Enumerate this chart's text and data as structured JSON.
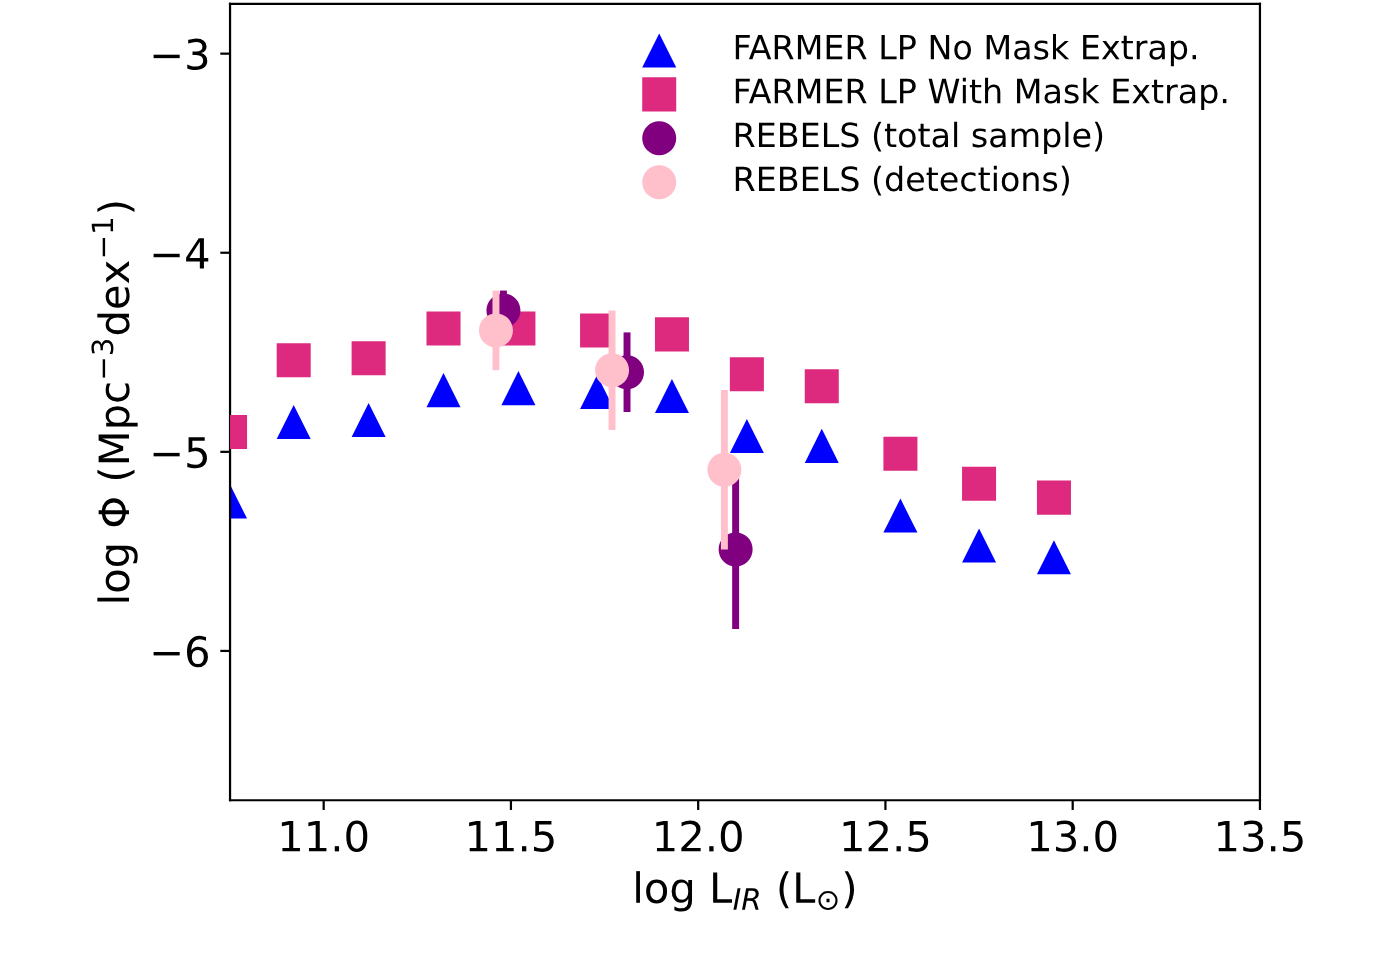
{
  "chart_data": {
    "type": "scatter",
    "xlabel": "log L$_{IR}$ (L$_{⊙}$)",
    "ylabel": "log Φ (Mpc$^{−3}$dex$^{−1}$)",
    "xlim": [
      10.75,
      13.5
    ],
    "ylim": [
      -6.75,
      -2.75
    ],
    "xticks": [
      {
        "value": 11.0,
        "label": "11.0"
      },
      {
        "value": 11.5,
        "label": "11.5"
      },
      {
        "value": 12.0,
        "label": "12.0"
      },
      {
        "value": 12.5,
        "label": "12.5"
      },
      {
        "value": 13.0,
        "label": "13.0"
      },
      {
        "value": 13.5,
        "label": "13.5"
      }
    ],
    "yticks": [
      -6,
      -5,
      -4,
      -3
    ],
    "grid": false,
    "legend": "top right",
    "series": [
      {
        "name": "FARMER LP No Mask Extrap.",
        "color": "#0000ff",
        "marker": "triangle",
        "x": [
          10.75,
          10.92,
          11.12,
          11.32,
          11.52,
          11.73,
          11.93,
          12.13,
          12.33,
          12.54,
          12.75,
          12.95
        ],
        "values": [
          -5.25,
          -4.85,
          -4.84,
          -4.69,
          -4.68,
          -4.7,
          -4.72,
          -4.92,
          -4.97,
          -5.32,
          -5.47,
          -5.53
        ]
      },
      {
        "name": "FARMER LP With Mask Extrap.",
        "color": "#dd2a7f",
        "marker": "square",
        "x": [
          10.75,
          10.92,
          11.12,
          11.32,
          11.52,
          11.73,
          11.93,
          12.13,
          12.33,
          12.54,
          12.75,
          12.95
        ],
        "values": [
          -4.9,
          -4.54,
          -4.53,
          -4.38,
          -4.38,
          -4.39,
          -4.41,
          -4.61,
          -4.67,
          -5.01,
          -5.16,
          -5.23
        ]
      },
      {
        "name": "REBELS (total sample)",
        "color": "#800080",
        "marker": "circle",
        "x": [
          11.48,
          11.81,
          12.1
        ],
        "values": [
          -4.29,
          -4.6,
          -5.49
        ],
        "errors": [
          0.1,
          0.2,
          0.4
        ]
      },
      {
        "name": "REBELS (detections)",
        "color": "#ffc0cb",
        "marker": "circle",
        "x": [
          11.46,
          11.77,
          12.07
        ],
        "values": [
          -4.39,
          -4.59,
          -5.09
        ],
        "errors": [
          0.2,
          0.3,
          0.4
        ]
      }
    ]
  }
}
